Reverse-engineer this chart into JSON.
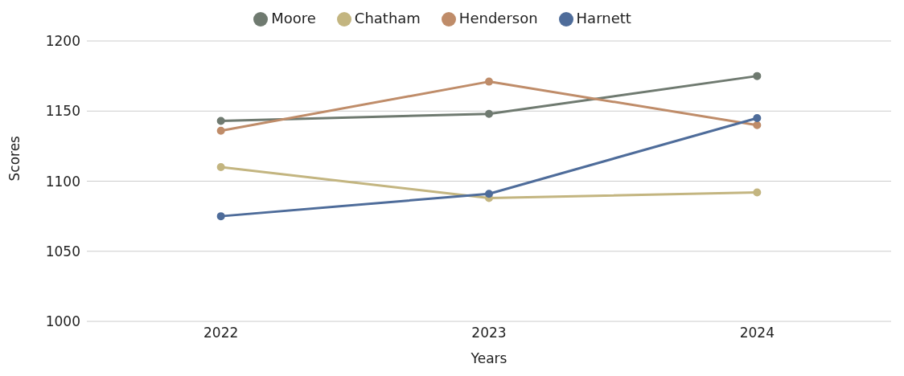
{
  "chart_data": {
    "type": "line",
    "xlabel": "Years",
    "ylabel": "Scores",
    "categories": [
      "2022",
      "2023",
      "2024"
    ],
    "series": [
      {
        "name": "Moore",
        "color": "#6f7a70",
        "values": [
          1143,
          1148,
          1175
        ]
      },
      {
        "name": "Chatham",
        "color": "#c3b580",
        "values": [
          1110,
          1088,
          1092
        ]
      },
      {
        "name": "Henderson",
        "color": "#bf8c69",
        "values": [
          1136,
          1171,
          1140
        ]
      },
      {
        "name": "Harnett",
        "color": "#4e6c9a",
        "values": [
          1075,
          1091,
          1145
        ]
      }
    ],
    "ylim": [
      1000,
      1200
    ],
    "yticks": [
      1000,
      1050,
      1100,
      1150,
      1200
    ],
    "grid": "y",
    "legend": "top",
    "marker": "circle",
    "line_style": "solid"
  }
}
